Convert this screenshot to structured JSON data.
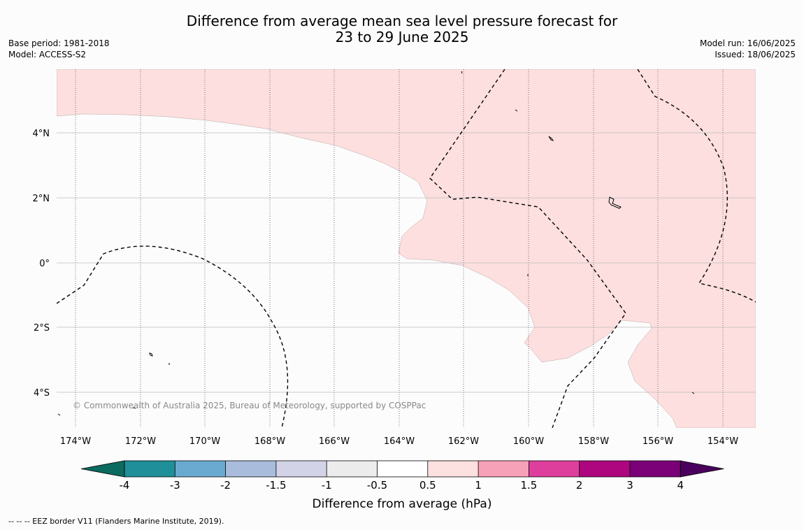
{
  "title_line1": "Difference from average mean sea level pressure forecast for",
  "title_line2": "23 to 29 June 2025",
  "base_period": "Base period: 1981-2018",
  "model": "Model: ACCESS-S2",
  "model_run": "Model run: 16/06/2025",
  "issued": "Issued: 18/06/2025",
  "copyright": "© Commonwealth of Australia 2025, Bureau of Meteorology, supported by COSPPac",
  "lon_labels": [
    "174°W",
    "172°W",
    "170°W",
    "168°W",
    "166°W",
    "164°W",
    "162°W",
    "160°W",
    "158°W",
    "156°W",
    "154°W"
  ],
  "lat_labels": [
    "4°N",
    "2°N",
    "0°",
    "2°S",
    "4°S"
  ],
  "colorbar": {
    "title": "Difference from average (hPa)",
    "ticks": [
      "-4",
      "-3",
      "-2",
      "-1.5",
      "-1",
      "-0.5",
      "0.5",
      "1",
      "1.5",
      "2",
      "3",
      "4"
    ],
    "colors": [
      "#0b6b5e",
      "#1f8f99",
      "#6aaad1",
      "#a9bcdc",
      "#d3d3e8",
      "#ececec",
      "#ffffff",
      "#fde0e0",
      "#f7a1b8",
      "#df3f9c",
      "#ad067f",
      "#7a0177",
      "#4a005d"
    ]
  },
  "footnote": "--  --  -- EEZ border V11 (Flanders Marine Institute, 2019).",
  "colors": {
    "positive_fill": "#fddfdf",
    "background": "#fcfcfc",
    "grid": "#bbbbbb"
  }
}
